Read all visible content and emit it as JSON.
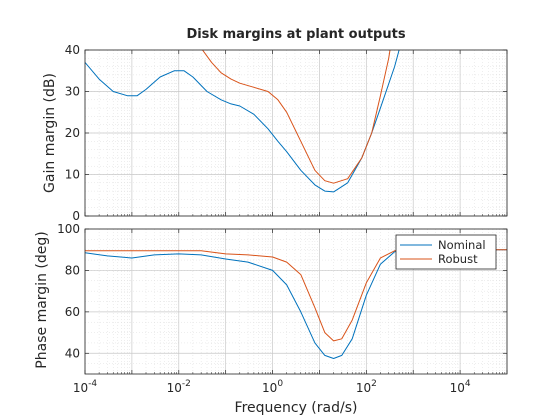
{
  "chart_data": {
    "type": "line",
    "title": "Disk margins at plant outputs",
    "xlabel": "Frequency (rad/s)",
    "xscale": "log",
    "xlim": [
      0.0001,
      100000
    ],
    "xticks": [
      0.0001,
      0.01,
      1,
      100,
      10000
    ],
    "xtick_labels": [
      {
        "base": "10",
        "exp": "-4"
      },
      {
        "base": "10",
        "exp": "-2"
      },
      {
        "base": "10",
        "exp": "0"
      },
      {
        "base": "10",
        "exp": "2"
      },
      {
        "base": "10",
        "exp": "4"
      }
    ],
    "grid": true,
    "colors": {
      "Nominal": "#0072bd",
      "Robust": "#d95319"
    },
    "subplots": [
      {
        "ylabel": "Gain margin (dB)",
        "ylim": [
          0,
          40
        ],
        "yticks": [
          0,
          10,
          20,
          30,
          40
        ],
        "ytick_labels": [
          "0",
          "10",
          "20",
          "30",
          "40"
        ],
        "series": [
          {
            "name": "Nominal",
            "x": [
              0.0001,
              0.0002,
              0.0004,
              0.0008,
              0.0013,
              0.002,
              0.004,
              0.008,
              0.013,
              0.02,
              0.04,
              0.08,
              0.13,
              0.2,
              0.4,
              0.8,
              1.3,
              2,
              4,
              8,
              13,
              20,
              40,
              80,
              130,
              200,
              400,
              500
            ],
            "y": [
              37.0,
              33.0,
              30.0,
              29.0,
              29.0,
              30.5,
              33.5,
              35.0,
              35.0,
              33.5,
              30.0,
              28.0,
              27.0,
              26.5,
              24.5,
              21.0,
              18.0,
              15.5,
              11.0,
              7.5,
              6.0,
              5.8,
              8.0,
              14.0,
              20.0,
              26.0,
              36.0,
              40.0
            ]
          },
          {
            "name": "Robust",
            "x": [
              0.032,
              0.05,
              0.08,
              0.13,
              0.2,
              0.4,
              0.8,
              1.3,
              2,
              4,
              8,
              13,
              20,
              40,
              80,
              130,
              200,
              300,
              320
            ],
            "y": [
              40.0,
              37.0,
              34.5,
              33.0,
              32.0,
              31.0,
              30.0,
              28.0,
              25.0,
              18.0,
              11.0,
              8.5,
              7.9,
              9.0,
              14.0,
              20.0,
              29.0,
              38.0,
              40.0
            ]
          }
        ]
      },
      {
        "ylabel": "Phase margin (deg)",
        "ylim": [
          30,
          100
        ],
        "yticks": [
          40,
          60,
          80,
          100
        ],
        "ytick_labels": [
          "40",
          "60",
          "80",
          "100"
        ],
        "legend": {
          "location": "top-right",
          "entries": [
            "Nominal",
            "Robust"
          ]
        },
        "series": [
          {
            "name": "Nominal",
            "x": [
              0.0001,
              0.0003,
              0.001,
              0.003,
              0.01,
              0.03,
              0.1,
              0.3,
              1,
              2,
              4,
              8,
              13,
              20,
              30,
              50,
              100,
              200,
              400,
              1000,
              100000
            ],
            "y": [
              88.5,
              87.0,
              86.0,
              87.5,
              88.0,
              87.5,
              85.5,
              84.0,
              80.0,
              73.0,
              60.0,
              45.0,
              39.0,
              37.5,
              39.0,
              47.0,
              68.0,
              83.0,
              89.0,
              90.0,
              90.0
            ]
          },
          {
            "name": "Robust",
            "x": [
              0.0001,
              0.001,
              0.01,
              0.03,
              0.1,
              0.3,
              1,
              2,
              4,
              8,
              13,
              20,
              30,
              50,
              100,
              200,
              400,
              1000,
              100000
            ],
            "y": [
              89.5,
              89.5,
              89.5,
              89.5,
              88.0,
              87.5,
              86.5,
              84.0,
              78.0,
              62.0,
              50.0,
              46.0,
              47.0,
              56.0,
              74.0,
              86.0,
              89.5,
              90.0,
              90.0
            ]
          }
        ]
      }
    ]
  }
}
